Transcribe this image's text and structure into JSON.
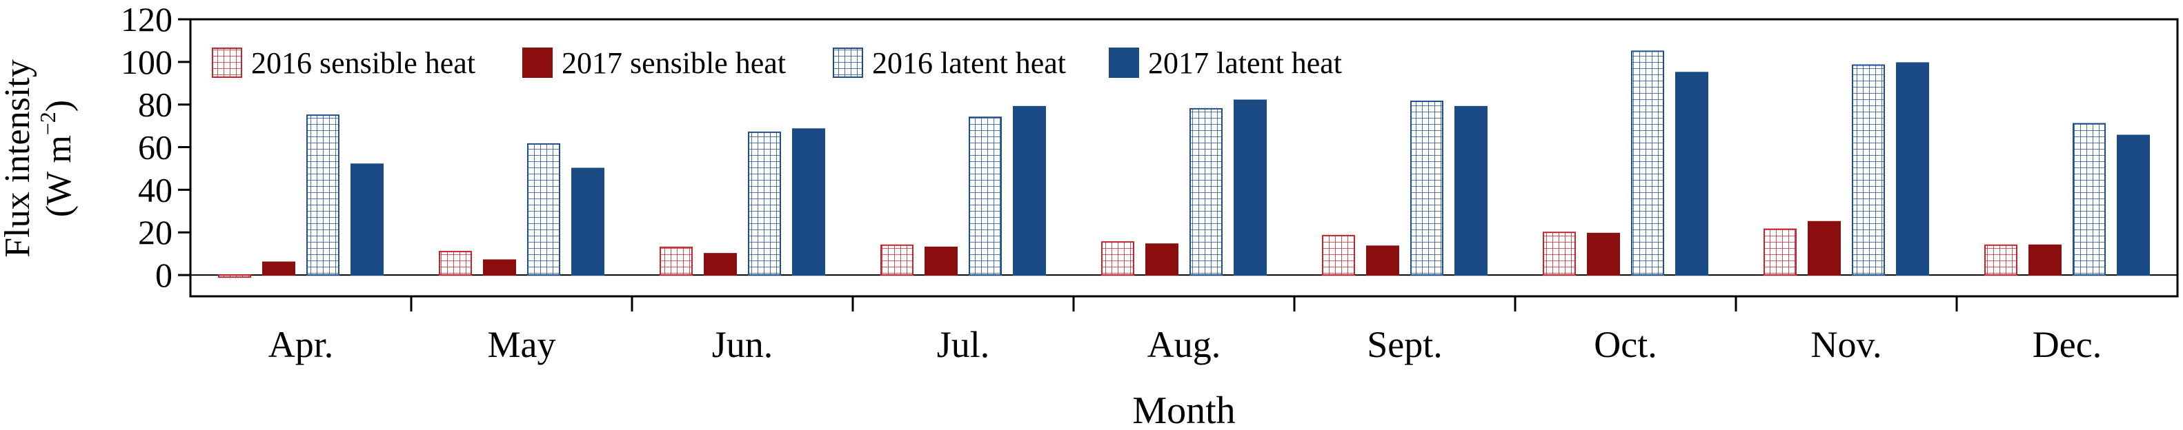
{
  "chart_data": {
    "type": "bar",
    "ylabel_line1": "Flux intensity",
    "ylabel_line2": "(W m",
    "ylabel_sup": "−2",
    "ylabel_close": ")",
    "xlabel": "Month",
    "ylim": [
      -10,
      120
    ],
    "yticks": [
      0,
      20,
      40,
      60,
      80,
      100,
      120
    ],
    "categories": [
      "Apr.",
      "May",
      "Jun.",
      "Jul.",
      "Aug.",
      "Sept.",
      "Oct.",
      "Nov.",
      "Dec."
    ],
    "legend_position": "top-left, single row",
    "grid": false,
    "series": [
      {
        "name": "2016 sensible heat",
        "color": "#c0272d",
        "fill": "hatched-grid",
        "values": [
          -1,
          11,
          13,
          14,
          15.5,
          18.5,
          20,
          21.5,
          14
        ]
      },
      {
        "name": "2017 sensible heat",
        "color": "#8b0e0e",
        "fill": "solid",
        "values": [
          6,
          7,
          10,
          13,
          14.5,
          13.5,
          19.5,
          25,
          14
        ]
      },
      {
        "name": "2016 latent heat",
        "color": "#1f4e8c",
        "fill": "hatched-grid",
        "values": [
          75,
          61.5,
          67,
          74,
          78,
          81.5,
          105,
          98.5,
          71
        ]
      },
      {
        "name": "2017 latent heat",
        "color": "#1a4b84",
        "fill": "solid",
        "values": [
          52,
          50,
          68.5,
          79,
          82,
          79,
          95,
          99.5,
          65.5
        ]
      }
    ]
  }
}
